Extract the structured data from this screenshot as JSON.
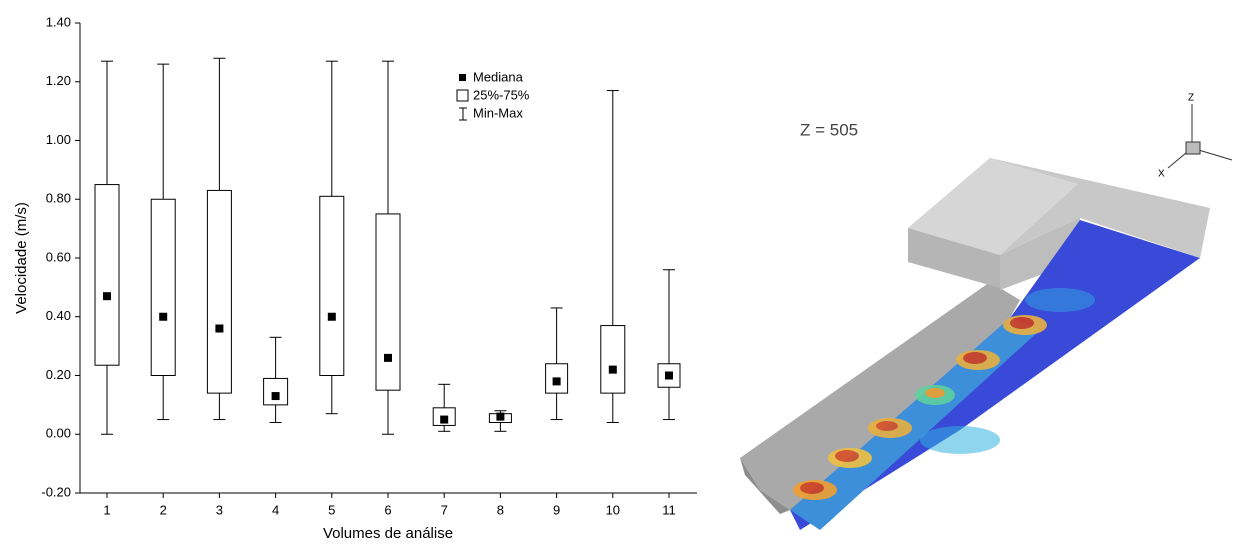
{
  "chart_data": {
    "type": "box",
    "y_label": "Velocidade (m/s)",
    "x_label": "Volumes de análise",
    "categories": [
      "1",
      "2",
      "3",
      "4",
      "5",
      "6",
      "7",
      "8",
      "9",
      "10",
      "11"
    ],
    "min": [
      0.0,
      0.05,
      0.05,
      0.04,
      0.07,
      0.0,
      0.01,
      0.01,
      0.05,
      0.04,
      0.05
    ],
    "q1": [
      0.235,
      0.2,
      0.14,
      0.1,
      0.2,
      0.15,
      0.03,
      0.04,
      0.14,
      0.14,
      0.16
    ],
    "median": [
      0.47,
      0.4,
      0.36,
      0.13,
      0.4,
      0.26,
      0.05,
      0.06,
      0.18,
      0.22,
      0.2
    ],
    "q3": [
      0.85,
      0.8,
      0.83,
      0.19,
      0.81,
      0.75,
      0.09,
      0.07,
      0.24,
      0.37,
      0.24
    ],
    "max": [
      1.27,
      1.26,
      1.28,
      0.33,
      1.27,
      1.27,
      0.17,
      0.08,
      0.43,
      1.17,
      0.56
    ],
    "legend": [
      "Mediana",
      "25%-75%",
      "Min-Max"
    ],
    "color": "#000000",
    "ylim": [
      -0.2,
      1.4
    ],
    "yticks": [
      {
        "value": -0.2,
        "label": "-0.20"
      },
      {
        "value": 0,
        "label": "0.00"
      },
      {
        "value": 0.2,
        "label": "0.20"
      },
      {
        "value": 0.4,
        "label": "0.40"
      },
      {
        "value": 0.6,
        "label": "0.60"
      },
      {
        "value": 0.8,
        "label": "0.80"
      },
      {
        "value": 1.0,
        "label": "1.00"
      },
      {
        "value": 1.2,
        "label": "1.20"
      },
      {
        "value": 1.4,
        "label": "1.40"
      }
    ]
  },
  "image": {
    "label": "Z = 505",
    "axis_z": "Z",
    "axis_x": "X"
  }
}
